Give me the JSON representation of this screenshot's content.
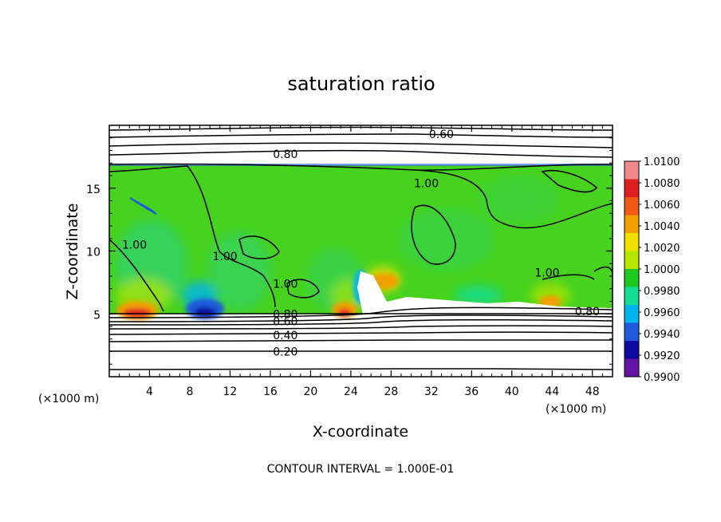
{
  "chart_data": {
    "type": "heatmap",
    "title": "saturation ratio",
    "xlabel": "X-coordinate",
    "ylabel": "Z-coordinate",
    "x_units_left": "(×1000 m)",
    "x_units_right": "(×1000 m)",
    "xlim": [
      0,
      50
    ],
    "ylim": [
      0,
      20
    ],
    "x_ticks": [
      "4",
      "8",
      "12",
      "16",
      "20",
      "24",
      "28",
      "32",
      "36",
      "40",
      "44",
      "48"
    ],
    "y_ticks": [
      "5",
      "10",
      "15"
    ],
    "colorbar": {
      "labels": [
        "1.0100",
        "1.0080",
        "1.0060",
        "1.0040",
        "1.0020",
        "1.0000",
        "0.9980",
        "0.9960",
        "0.9940",
        "0.9920",
        "0.9900"
      ],
      "colors": [
        "#f08a8a",
        "#e02020",
        "#f05a14",
        "#f0a000",
        "#f0e000",
        "#b4e600",
        "#1ec81e",
        "#14dc96",
        "#00b4f0",
        "#1e5adc",
        "#0a0aa0",
        "#6414a0"
      ]
    },
    "contour_labels": [
      {
        "text": "0.60",
        "x": 33.0,
        "z": 19.3
      },
      {
        "text": "0.80",
        "x": 17.5,
        "z": 17.7
      },
      {
        "text": "1.00",
        "x": 31.5,
        "z": 15.4
      },
      {
        "text": "1.00",
        "x": 2.5,
        "z": 10.5
      },
      {
        "text": "1.00",
        "x": 11.5,
        "z": 9.6
      },
      {
        "text": "1.00",
        "x": 17.5,
        "z": 7.4
      },
      {
        "text": "1.00",
        "x": 43.5,
        "z": 8.3
      },
      {
        "text": "0.80",
        "x": 17.5,
        "z": 5.0
      },
      {
        "text": "0.60",
        "x": 17.5,
        "z": 4.4
      },
      {
        "text": "0.40",
        "x": 17.5,
        "z": 3.3
      },
      {
        "text": "0.20",
        "x": 17.5,
        "z": 2.0
      },
      {
        "text": "0.80",
        "x": 47.5,
        "z": 5.2
      }
    ],
    "contour_interval_note": "CONTOUR INTERVAL = 1.000E-01"
  }
}
